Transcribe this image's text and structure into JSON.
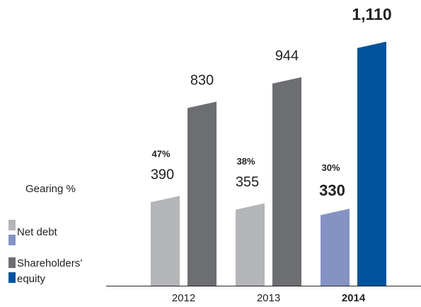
{
  "chart_data": {
    "type": "bar",
    "categories": [
      "2012",
      "2013",
      "2014"
    ],
    "highlight": "2014",
    "series": [
      {
        "name": "Net debt",
        "color": "#b4b5b8",
        "highlight_color": "#8593c4",
        "values": [
          390,
          355,
          330
        ]
      },
      {
        "name": "Shareholders’ equity",
        "color": "#6d6e71",
        "highlight_color": "#00539b",
        "values": [
          830,
          944,
          1110
        ],
        "value_labels": [
          "830",
          "944",
          "1,110"
        ]
      }
    ],
    "gearing": {
      "name": "Gearing %",
      "values": [
        47,
        38,
        30
      ],
      "value_labels": [
        "47%",
        "38%",
        "30%"
      ]
    }
  }
}
